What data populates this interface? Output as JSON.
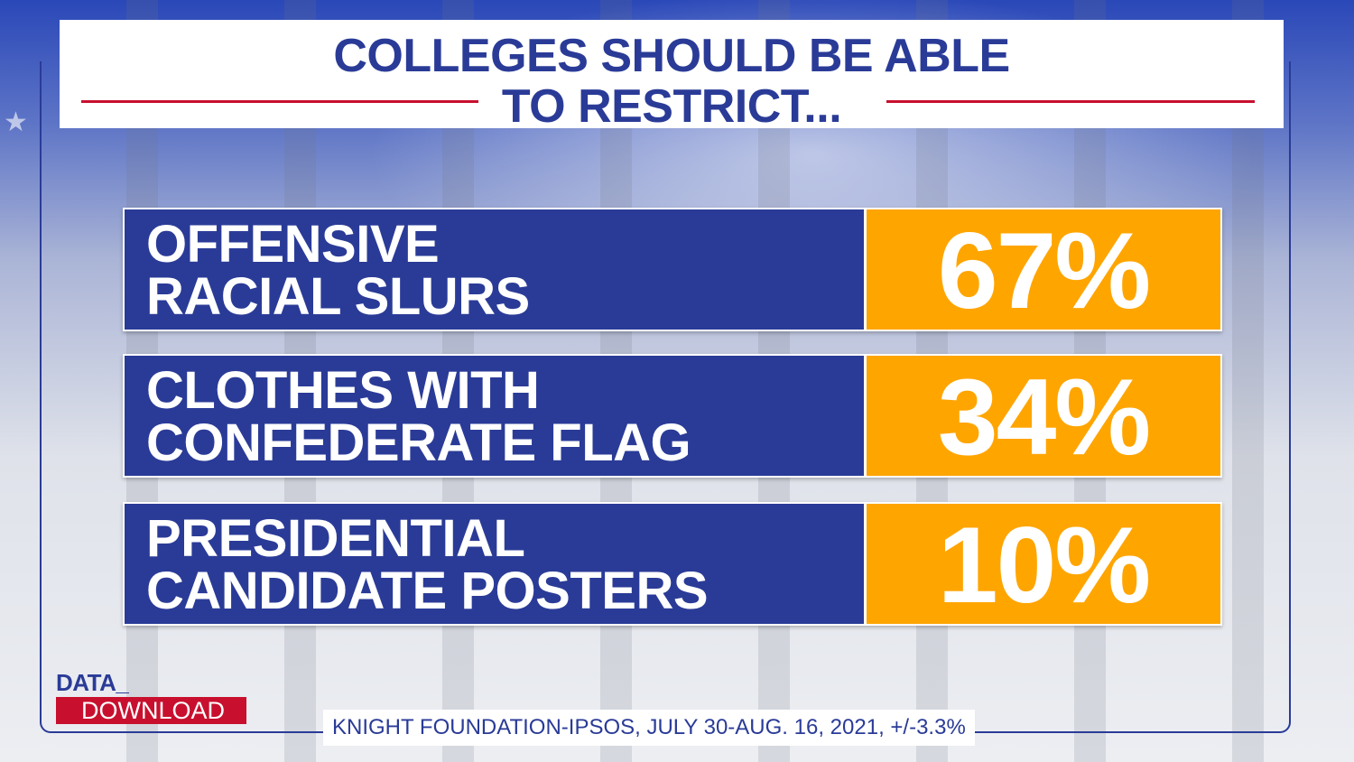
{
  "title": {
    "line1": "COLLEGES SHOULD BE ABLE",
    "line2": "TO RESTRICT..."
  },
  "chart_data": {
    "type": "table",
    "title": "COLLEGES SHOULD BE ABLE TO RESTRICT...",
    "categories": [
      [
        "OFFENSIVE",
        "RACIAL SLURS"
      ],
      [
        "CLOTHES WITH",
        "CONFEDERATE FLAG"
      ],
      [
        "PRESIDENTIAL",
        "CANDIDATE POSTERS"
      ]
    ],
    "values": [
      67,
      34,
      10
    ],
    "value_labels": [
      "67%",
      "34%",
      "10%"
    ],
    "unit": "%"
  },
  "logo": {
    "line1": "DATA_",
    "line2": "DOWNLOAD"
  },
  "source": "KNIGHT FOUNDATION-IPSOS, JULY 30-AUG. 16, 2021, +/-3.3%",
  "colors": {
    "navy": "#2a3b97",
    "orange": "#ffa500",
    "red": "#c8102e",
    "white": "#ffffff"
  }
}
